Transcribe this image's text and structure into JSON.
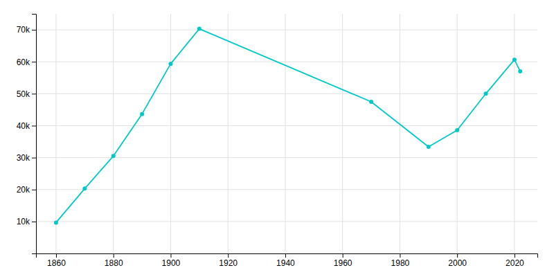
{
  "chart_data": {
    "type": "line",
    "x": [
      1860,
      1870,
      1880,
      1890,
      1900,
      1910,
      1970,
      1990,
      2000,
      2010,
      2020,
      2022
    ],
    "values": [
      9656,
      20297,
      30500,
      43648,
      59364,
      70324,
      47475,
      33397,
      38577,
      50005,
      60664,
      57000
    ],
    "color": "#00C8C8",
    "marker": "circle",
    "xlim": [
      1853,
      2028
    ],
    "ylim": [
      0,
      75000
    ],
    "xticks": [
      1860,
      1880,
      1900,
      1920,
      1940,
      1960,
      1980,
      2000,
      2020
    ],
    "yticks": [
      {
        "value": 10000,
        "label": "10k"
      },
      {
        "value": 20000,
        "label": "20k"
      },
      {
        "value": 30000,
        "label": "30k"
      },
      {
        "value": 40000,
        "label": "40k"
      },
      {
        "value": 50000,
        "label": "50k"
      },
      {
        "value": 60000,
        "label": "60k"
      },
      {
        "value": 70000,
        "label": "70k"
      }
    ],
    "grid": true
  }
}
